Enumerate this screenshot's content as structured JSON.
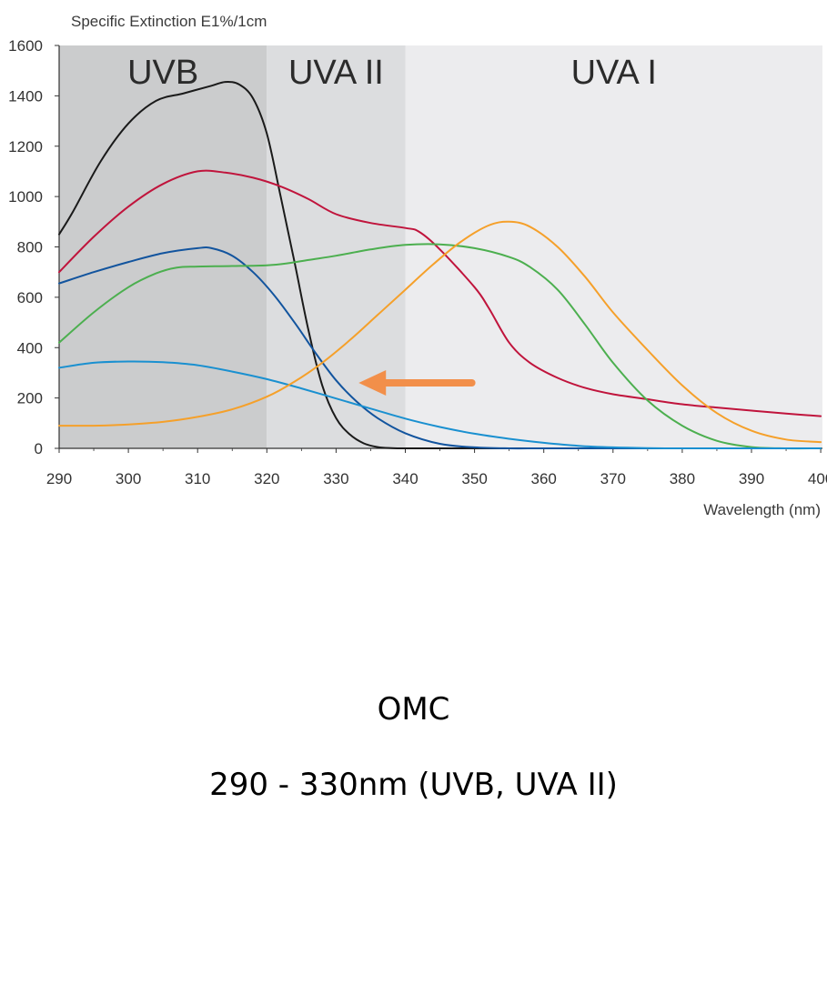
{
  "chart_data": {
    "type": "line",
    "ylabel": "Specific Extinction E1%/1cm",
    "xlabel": "Wavelength (nm)",
    "xlim": [
      290,
      401
    ],
    "ylim": [
      0,
      1600
    ],
    "x_ticks": [
      290,
      300,
      310,
      320,
      330,
      340,
      350,
      360,
      370,
      380,
      390,
      400
    ],
    "y_ticks": [
      0,
      200,
      400,
      600,
      800,
      1000,
      1200,
      1400,
      1600
    ],
    "regions": [
      {
        "label": "UVB",
        "from": 290,
        "to": 320,
        "color": "#cbcccd"
      },
      {
        "label": "UVA II",
        "from": 320,
        "to": 340,
        "color": "#dcdddf"
      },
      {
        "label": "UVA I",
        "from": 340,
        "to": 401,
        "color": "#ececee"
      }
    ],
    "annotation": {
      "type": "arrow",
      "color": "#f28f4a",
      "from": [
        350,
        260
      ],
      "to": [
        333,
        260
      ]
    },
    "series": [
      {
        "color": "#1a1a1a",
        "x": [
          290,
          292,
          296,
          300,
          304,
          308,
          312,
          314,
          316,
          318,
          320,
          322,
          324,
          326,
          328,
          330,
          332,
          334,
          336,
          338,
          340,
          345,
          350,
          360,
          370,
          380,
          390,
          400
        ],
        "y": [
          850,
          940,
          1140,
          1290,
          1380,
          1410,
          1440,
          1455,
          1445,
          1390,
          1250,
          1000,
          740,
          470,
          250,
          120,
          55,
          20,
          5,
          1,
          0,
          0,
          0,
          0,
          0,
          0,
          0,
          0
        ]
      },
      {
        "color": "#c0143c",
        "x": [
          290,
          295,
          300,
          305,
          310,
          314,
          318,
          322,
          326,
          330,
          335,
          340,
          342,
          345,
          350,
          352,
          355,
          358,
          362,
          366,
          370,
          375,
          380,
          385,
          390,
          395,
          400
        ],
        "y": [
          700,
          840,
          960,
          1050,
          1100,
          1095,
          1075,
          1040,
          990,
          930,
          895,
          875,
          860,
          790,
          640,
          560,
          420,
          340,
          280,
          240,
          215,
          195,
          175,
          162,
          150,
          138,
          128
        ]
      },
      {
        "color": "#12549e",
        "x": [
          290,
          295,
          300,
          305,
          310,
          312,
          315,
          318,
          321,
          324,
          327,
          330,
          333,
          336,
          340,
          345,
          350,
          355,
          360,
          370,
          380,
          390,
          400
        ],
        "y": [
          655,
          700,
          740,
          775,
          795,
          795,
          765,
          700,
          610,
          500,
          380,
          270,
          185,
          120,
          60,
          18,
          4,
          0,
          0,
          0,
          0,
          0,
          0
        ]
      },
      {
        "color": "#4caf4f",
        "x": [
          290,
          295,
          300,
          304,
          307,
          310,
          315,
          320,
          323,
          326,
          330,
          335,
          340,
          345,
          350,
          355,
          358,
          362,
          366,
          370,
          375,
          380,
          385,
          390,
          395,
          400
        ],
        "y": [
          420,
          540,
          640,
          695,
          718,
          722,
          724,
          727,
          735,
          748,
          765,
          790,
          808,
          810,
          795,
          760,
          720,
          630,
          490,
          340,
          190,
          90,
          30,
          5,
          0,
          0
        ]
      },
      {
        "color": "#1a90d0",
        "x": [
          290,
          295,
          300,
          305,
          310,
          315,
          320,
          325,
          330,
          335,
          340,
          345,
          350,
          355,
          360,
          365,
          370,
          375,
          380,
          390,
          400
        ],
        "y": [
          320,
          340,
          345,
          342,
          330,
          305,
          275,
          238,
          198,
          158,
          118,
          85,
          58,
          38,
          22,
          10,
          4,
          1,
          0,
          0,
          0
        ]
      },
      {
        "color": "#f5a02a",
        "x": [
          290,
          295,
          300,
          305,
          310,
          315,
          320,
          324,
          328,
          332,
          336,
          340,
          344,
          348,
          352,
          355,
          358,
          362,
          366,
          370,
          375,
          380,
          385,
          390,
          395,
          400
        ],
        "y": [
          90,
          90,
          95,
          105,
          125,
          155,
          205,
          265,
          340,
          430,
          530,
          630,
          730,
          820,
          885,
          900,
          880,
          800,
          680,
          540,
          390,
          250,
          140,
          70,
          35,
          25
        ]
      }
    ]
  },
  "caption": {
    "line1": "OMC",
    "line2": "290 - 330nm (UVB, UVA II)"
  }
}
